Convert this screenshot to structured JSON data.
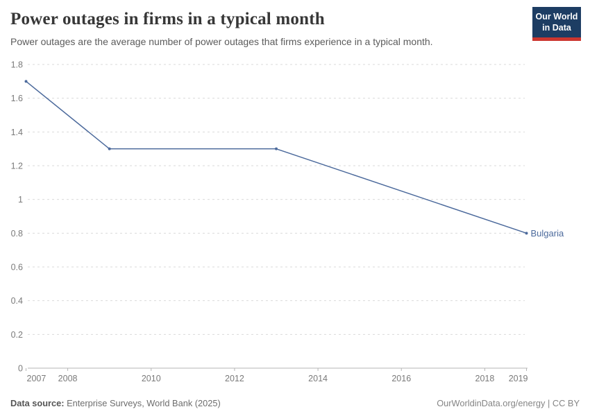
{
  "header": {
    "title": "Power outages in firms in a typical month",
    "subtitle": "Power outages are the average number of power outages that firms experience in a typical month."
  },
  "logo": {
    "line1": "Our World",
    "line2": "in Data"
  },
  "footer": {
    "source_label": "Data source:",
    "source_value": "Enterprise Surveys, World Bank (2025)",
    "license": "OurWorldinData.org/energy | CC BY"
  },
  "colors": {
    "accent": "#4c6a9c",
    "logo_navy": "#1d3d63",
    "logo_red": "#cc362f",
    "grid": "#dadada",
    "axis": "#b5b5b5",
    "tick_text": "#7a7a7a",
    "title_text": "#373737",
    "subtitle_text": "#5b5b5b"
  },
  "chart_data": {
    "type": "line",
    "title": "Power outages in firms in a typical month",
    "xlabel": "",
    "ylabel": "",
    "xlim": [
      2007,
      2019
    ],
    "ylim": [
      0,
      1.8
    ],
    "grid": "horizontal-dashed",
    "legend_position": "end-of-line-label",
    "x_ticks": [
      [
        2007,
        "2007"
      ],
      [
        2008,
        "2008"
      ],
      [
        2010,
        "2010"
      ],
      [
        2012,
        "2012"
      ],
      [
        2014,
        "2014"
      ],
      [
        2016,
        "2016"
      ],
      [
        2018,
        "2018"
      ],
      [
        2019,
        "2019"
      ]
    ],
    "y_ticks": [
      [
        0,
        "0"
      ],
      [
        0.2,
        "0.2"
      ],
      [
        0.4,
        "0.4"
      ],
      [
        0.6,
        "0.6"
      ],
      [
        0.8,
        "0.8"
      ],
      [
        1,
        "1"
      ],
      [
        1.2,
        "1.2"
      ],
      [
        1.4,
        "1.4"
      ],
      [
        1.6,
        "1.6"
      ],
      [
        1.8,
        "1.8"
      ]
    ],
    "series": [
      {
        "name": "Bulgaria",
        "color": "#4c6a9c",
        "points": [
          [
            2007,
            1.7
          ],
          [
            2009,
            1.3
          ],
          [
            2013,
            1.3
          ],
          [
            2019,
            0.8
          ]
        ]
      }
    ]
  }
}
